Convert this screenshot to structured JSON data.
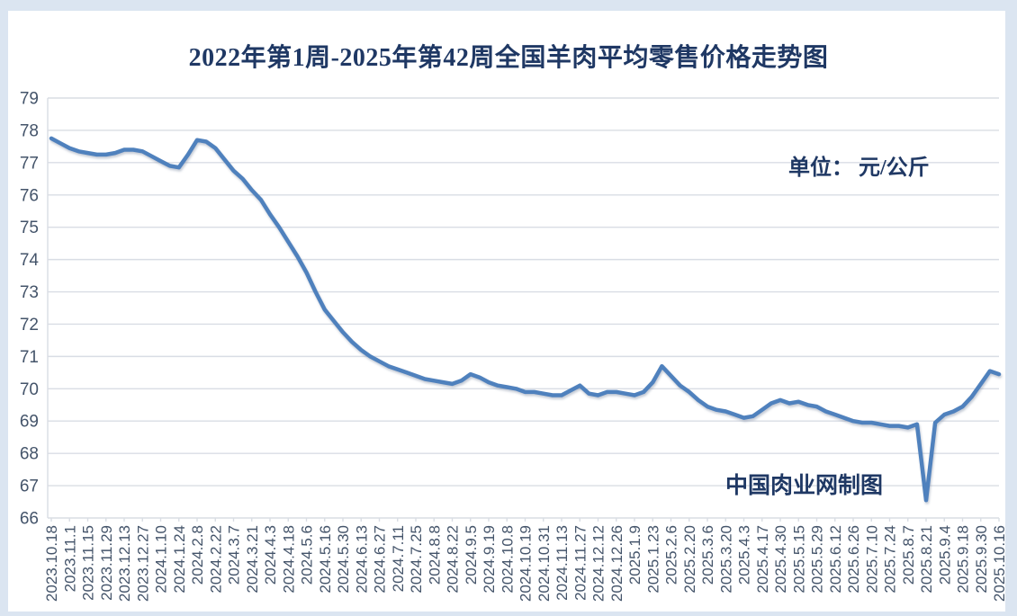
{
  "page": {
    "background": "#ffffff"
  },
  "chart": {
    "title": "2022年第1周-2025年第42周全国羊肉平均零售价格走势图",
    "unit_label": "单位： 元/公斤",
    "annotation": "中国肉业网制图"
  },
  "colors": {
    "line": "#4f81bd",
    "title_text": "#1f3864",
    "axis_text": "#44546a",
    "gridline": "#d9dde4",
    "frame": "#dbe5f1",
    "background": "#ffffff"
  },
  "chart_data": {
    "type": "line",
    "title": "2022年第1周-2025年第42周全国羊肉平均零售价格走势图",
    "xlabel": "",
    "ylabel": "单位： 元/公斤",
    "ylim": [
      66,
      79
    ],
    "y_ticks": [
      66,
      67,
      68,
      69,
      70,
      71,
      72,
      73,
      74,
      75,
      76,
      77,
      78,
      79
    ],
    "grid": true,
    "legend": false,
    "label_every": 2,
    "x_labels": [
      "2023.10.18",
      "2023.11.1",
      "2023.11.15",
      "2023.11.29",
      "2023.12.13",
      "2023.12.27",
      "2024.1.10",
      "2024.1.24",
      "2024.2.8",
      "2024.2.22",
      "2024.3.7",
      "2024.3.21",
      "2024.4.3",
      "2024.4.18",
      "2024.5.6",
      "2024.5.16",
      "2024.5.30",
      "2024.6.13",
      "2024.6.27",
      "2024.7.11",
      "2024.7.25",
      "2024.8.8",
      "2024.8.22",
      "2024.9.5",
      "2024.9.19",
      "2024.10.8",
      "2024.10.19",
      "2024.10.31",
      "2024.11.13",
      "2024.11.27",
      "2024.12.12",
      "2024.12.26",
      "2025.1.9",
      "2025.1.23",
      "2025.2.6",
      "2025.2.20",
      "2025.3.6",
      "2025.3.20",
      "2025.4.3",
      "2025.4.17",
      "2025.4.30",
      "2025.5.15",
      "2025.5.29",
      "2025.6.12",
      "2025.6.26",
      "2025.7.10",
      "2025.7.24",
      "2025.8.7",
      "2025.8.21",
      "2025.9.4",
      "2025.9.18",
      "2025.9.30",
      "2025.10.16"
    ],
    "values": [
      77.75,
      77.6,
      77.45,
      77.35,
      77.3,
      77.25,
      77.25,
      77.3,
      77.4,
      77.4,
      77.35,
      77.2,
      77.05,
      76.9,
      76.85,
      77.25,
      77.7,
      77.65,
      77.45,
      77.1,
      76.75,
      76.5,
      76.15,
      75.85,
      75.4,
      75.0,
      74.55,
      74.1,
      73.6,
      73.0,
      72.45,
      72.1,
      71.75,
      71.45,
      71.2,
      71.0,
      70.85,
      70.7,
      70.6,
      70.5,
      70.4,
      70.3,
      70.25,
      70.2,
      70.15,
      70.25,
      70.45,
      70.35,
      70.2,
      70.1,
      70.05,
      70.0,
      69.9,
      69.9,
      69.85,
      69.8,
      69.8,
      69.95,
      70.1,
      69.85,
      69.8,
      69.9,
      69.9,
      69.85,
      69.8,
      69.9,
      70.2,
      70.7,
      70.4,
      70.1,
      69.9,
      69.65,
      69.45,
      69.35,
      69.3,
      69.2,
      69.1,
      69.15,
      69.35,
      69.55,
      69.65,
      69.55,
      69.6,
      69.5,
      69.45,
      69.3,
      69.2,
      69.1,
      69.0,
      68.95,
      68.95,
      68.9,
      68.85,
      68.85,
      68.8,
      68.9,
      66.55,
      68.95,
      69.2,
      69.3,
      69.45,
      69.75,
      70.15,
      70.55,
      70.45
    ]
  }
}
